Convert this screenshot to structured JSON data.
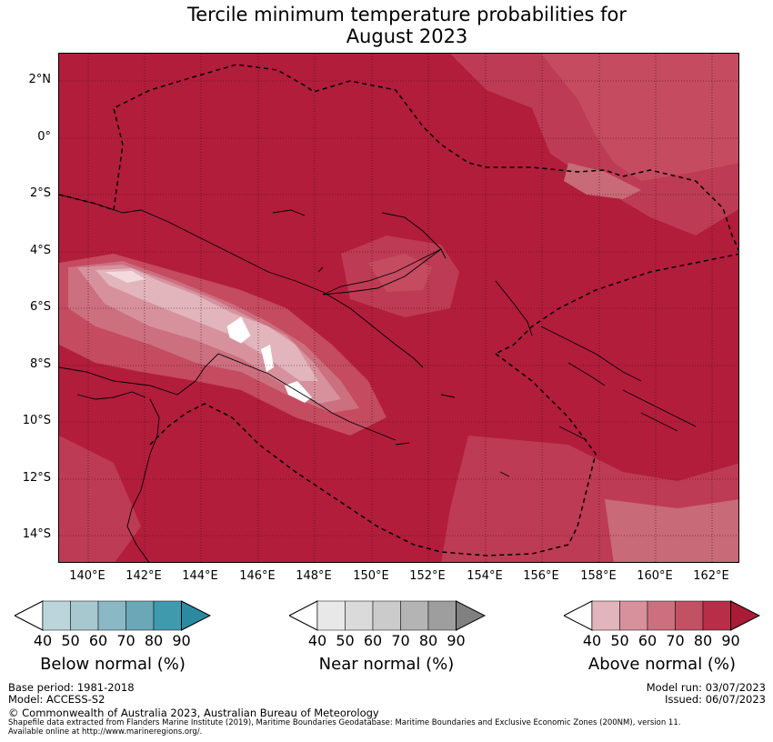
{
  "title_line1": "Tercile minimum temperature probabilities for",
  "title_line2": "August 2023",
  "lat_labels": [
    "2°N",
    "0°",
    "2°S",
    "4°S",
    "6°S",
    "8°S",
    "10°S",
    "12°S",
    "14°S"
  ],
  "lon_labels": [
    "140°E",
    "142°E",
    "144°E",
    "146°E",
    "148°E",
    "150°E",
    "152°E",
    "154°E",
    "156°E",
    "158°E",
    "160°E",
    "162°E"
  ],
  "legend_below": {
    "label": "Below normal (%)",
    "ticks": [
      "40",
      "50",
      "60",
      "70",
      "80",
      "90"
    ],
    "colors": [
      "#bcd5dc",
      "#a8c8d0",
      "#8ab8c5",
      "#6aa8b8",
      "#3f9aae",
      "#2b8aa0"
    ]
  },
  "legend_near": {
    "label": "Near normal (%)",
    "ticks": [
      "40",
      "50",
      "60",
      "70",
      "80",
      "90"
    ],
    "colors": [
      "#e8e8e8",
      "#dadada",
      "#cbcbcb",
      "#b4b4b4",
      "#9e9e9e",
      "#808080"
    ]
  },
  "legend_above": {
    "label": "Above normal (%)",
    "ticks": [
      "40",
      "50",
      "60",
      "70",
      "80",
      "90"
    ],
    "colors": [
      "#e2b4bc",
      "#d6919d",
      "#cc6f7f",
      "#c25163",
      "#b82e48",
      "#a81c36"
    ]
  },
  "base_period": "Base period: 1981-2018",
  "model": "Model: ACCESS-S2",
  "model_run": "Model run: 03/07/2023",
  "issued": "Issued: 06/07/2023",
  "copyright": "© Commonwealth of Australia 2023, Australian Bureau of Meteorology",
  "shapefile_line1": "Shapefile data extracted from Flanders Marine Institute (2019), Maritime Boundaries Geodatabase: Maritime Boundaries and Exclusive Economic Zones (200NM), version 11.",
  "shapefile_line2": "Available online at http://www.marineregions.org/."
}
